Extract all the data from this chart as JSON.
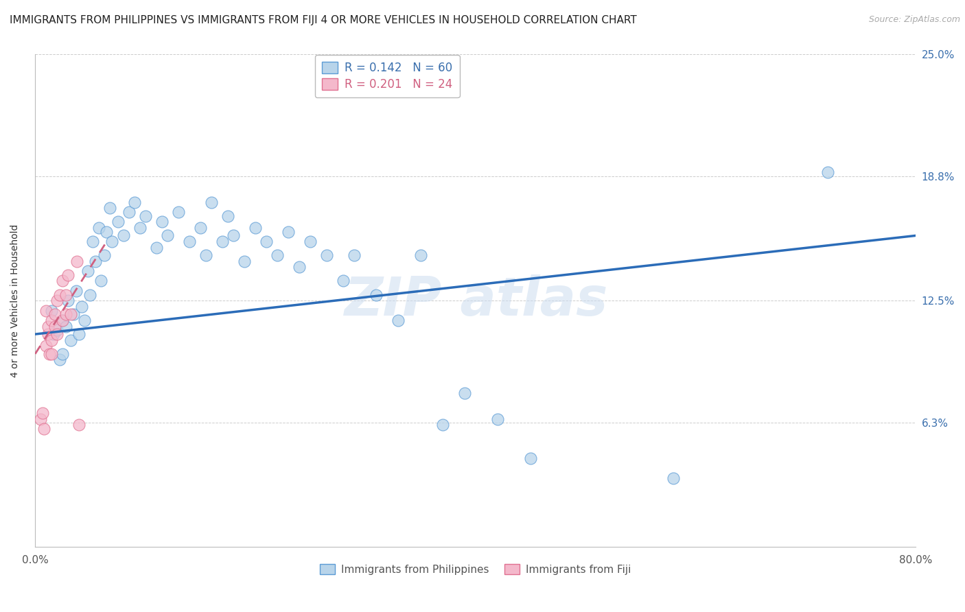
{
  "title": "IMMIGRANTS FROM PHILIPPINES VS IMMIGRANTS FROM FIJI 4 OR MORE VEHICLES IN HOUSEHOLD CORRELATION CHART",
  "source": "Source: ZipAtlas.com",
  "ylabel": "4 or more Vehicles in Household",
  "xlim": [
    0.0,
    0.8
  ],
  "ylim": [
    0.0,
    0.25
  ],
  "ytick_positions": [
    0.063,
    0.125,
    0.188,
    0.25
  ],
  "yticklabels": [
    "6.3%",
    "12.5%",
    "18.8%",
    "25.0%"
  ],
  "legend_blue_r": "R = 0.142",
  "legend_blue_n": "N = 60",
  "legend_pink_r": "R = 0.201",
  "legend_pink_n": "N = 24",
  "legend_blue_label": "Immigrants from Philippines",
  "legend_pink_label": "Immigrants from Fiji",
  "blue_color": "#b8d4ea",
  "blue_edge_color": "#5b9bd5",
  "pink_color": "#f4b8cb",
  "pink_edge_color": "#e07090",
  "blue_line_color": "#2b6cb8",
  "pink_line_color": "#d06080",
  "blue_line_x0": 0.0,
  "blue_line_x1": 0.8,
  "blue_line_y0": 0.108,
  "blue_line_y1": 0.158,
  "pink_line_x0": 0.0,
  "pink_line_x1": 0.065,
  "pink_line_y0": 0.098,
  "pink_line_y1": 0.155,
  "blue_x": [
    0.015,
    0.017,
    0.02,
    0.022,
    0.025,
    0.025,
    0.028,
    0.03,
    0.032,
    0.035,
    0.037,
    0.04,
    0.042,
    0.045,
    0.048,
    0.05,
    0.052,
    0.055,
    0.058,
    0.06,
    0.063,
    0.065,
    0.068,
    0.07,
    0.075,
    0.08,
    0.085,
    0.09,
    0.095,
    0.1,
    0.11,
    0.115,
    0.12,
    0.13,
    0.14,
    0.15,
    0.155,
    0.16,
    0.17,
    0.175,
    0.18,
    0.19,
    0.2,
    0.21,
    0.22,
    0.23,
    0.24,
    0.25,
    0.265,
    0.28,
    0.29,
    0.31,
    0.33,
    0.35,
    0.37,
    0.39,
    0.42,
    0.45,
    0.58,
    0.72
  ],
  "blue_y": [
    0.12,
    0.108,
    0.11,
    0.095,
    0.115,
    0.098,
    0.112,
    0.125,
    0.105,
    0.118,
    0.13,
    0.108,
    0.122,
    0.115,
    0.14,
    0.128,
    0.155,
    0.145,
    0.162,
    0.135,
    0.148,
    0.16,
    0.172,
    0.155,
    0.165,
    0.158,
    0.17,
    0.175,
    0.162,
    0.168,
    0.152,
    0.165,
    0.158,
    0.17,
    0.155,
    0.162,
    0.148,
    0.175,
    0.155,
    0.168,
    0.158,
    0.145,
    0.162,
    0.155,
    0.148,
    0.16,
    0.142,
    0.155,
    0.148,
    0.135,
    0.148,
    0.128,
    0.115,
    0.148,
    0.062,
    0.078,
    0.065,
    0.045,
    0.035,
    0.19
  ],
  "pink_x": [
    0.005,
    0.007,
    0.008,
    0.01,
    0.01,
    0.012,
    0.012,
    0.013,
    0.015,
    0.015,
    0.015,
    0.018,
    0.018,
    0.02,
    0.02,
    0.022,
    0.025,
    0.025,
    0.028,
    0.028,
    0.03,
    0.032,
    0.038,
    0.04
  ],
  "pink_y": [
    0.065,
    0.068,
    0.06,
    0.12,
    0.102,
    0.108,
    0.112,
    0.098,
    0.115,
    0.105,
    0.098,
    0.118,
    0.112,
    0.125,
    0.108,
    0.128,
    0.135,
    0.115,
    0.128,
    0.118,
    0.138,
    0.118,
    0.145,
    0.062
  ]
}
